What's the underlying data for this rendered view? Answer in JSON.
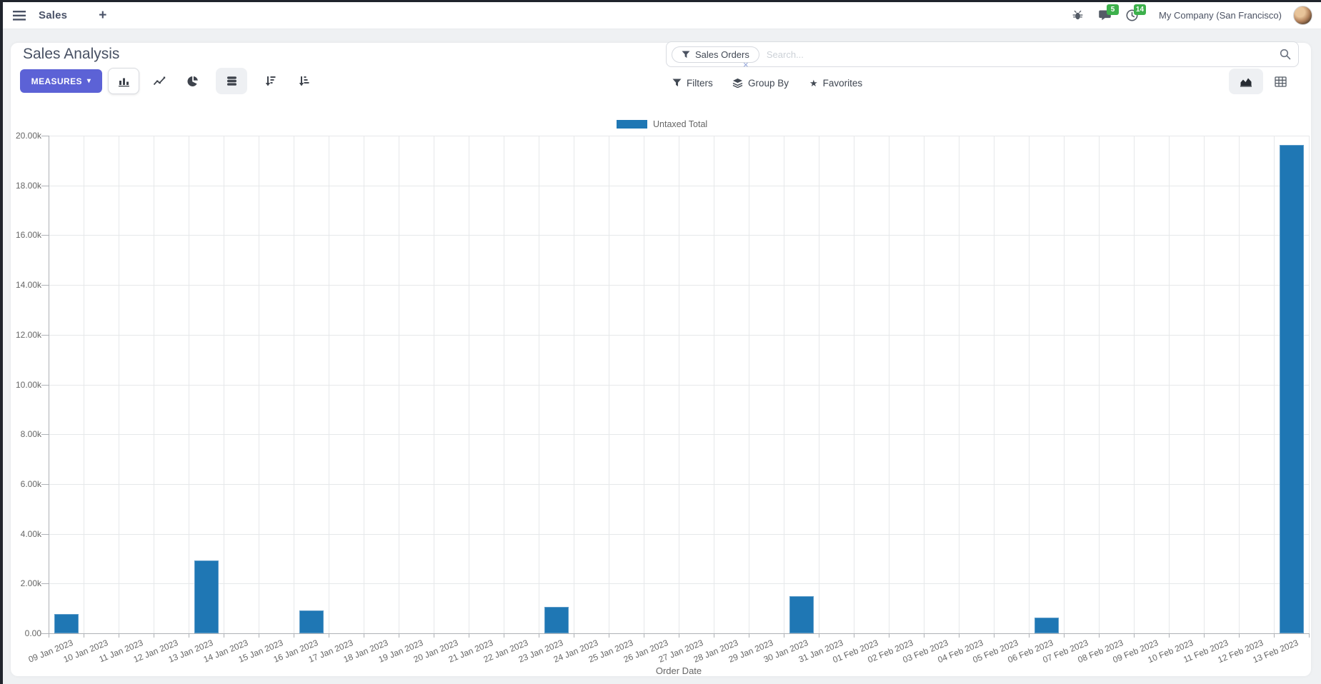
{
  "navbar": {
    "brand": "Sales",
    "new_label": "+",
    "messages_badge": "5",
    "activities_badge": "14",
    "company": "My Company (San Francisco)"
  },
  "control_panel": {
    "title": "Sales Analysis",
    "measures_label": "MEASURES",
    "measures_caret": "▾",
    "search": {
      "facet_label": "Sales Orders",
      "facet_remove": "×",
      "placeholder": "Search..."
    },
    "filters_label": "Filters",
    "groupby_label": "Group By",
    "favorites_label": "Favorites"
  },
  "chart_data": {
    "type": "bar",
    "title": "",
    "legend_position": "top",
    "series": [
      {
        "name": "Untaxed Total",
        "color": "#1f77b4",
        "values": [
          780,
          0,
          0,
          0,
          2920,
          0,
          0,
          910,
          0,
          0,
          0,
          0,
          0,
          0,
          1050,
          0,
          0,
          0,
          0,
          0,
          0,
          1500,
          0,
          0,
          0,
          0,
          0,
          0,
          640,
          0,
          0,
          0,
          0,
          0,
          0,
          19620
        ]
      }
    ],
    "categories": [
      "09 Jan 2023",
      "10 Jan 2023",
      "11 Jan 2023",
      "12 Jan 2023",
      "13 Jan 2023",
      "14 Jan 2023",
      "15 Jan 2023",
      "16 Jan 2023",
      "17 Jan 2023",
      "18 Jan 2023",
      "19 Jan 2023",
      "20 Jan 2023",
      "21 Jan 2023",
      "22 Jan 2023",
      "23 Jan 2023",
      "24 Jan 2023",
      "25 Jan 2023",
      "26 Jan 2023",
      "27 Jan 2023",
      "28 Jan 2023",
      "29 Jan 2023",
      "30 Jan 2023",
      "31 Jan 2023",
      "01 Feb 2023",
      "02 Feb 2023",
      "03 Feb 2023",
      "04 Feb 2023",
      "05 Feb 2023",
      "06 Feb 2023",
      "07 Feb 2023",
      "08 Feb 2023",
      "09 Feb 2023",
      "10 Feb 2023",
      "11 Feb 2023",
      "12 Feb 2023",
      "13 Feb 2023"
    ],
    "xlabel": "Order Date",
    "ylabel": "",
    "ylim": [
      0,
      20000
    ],
    "ytick_step": 2000,
    "ytick_labels": [
      "0.00",
      "2.00k",
      "4.00k",
      "6.00k",
      "8.00k",
      "10.00k",
      "12.00k",
      "14.00k",
      "16.00k",
      "18.00k",
      "20.00k"
    ],
    "grid": true
  },
  "colors": {
    "accent": "#5c62d6",
    "bar": "#1f77b4",
    "badge_green": "#3db14c"
  }
}
